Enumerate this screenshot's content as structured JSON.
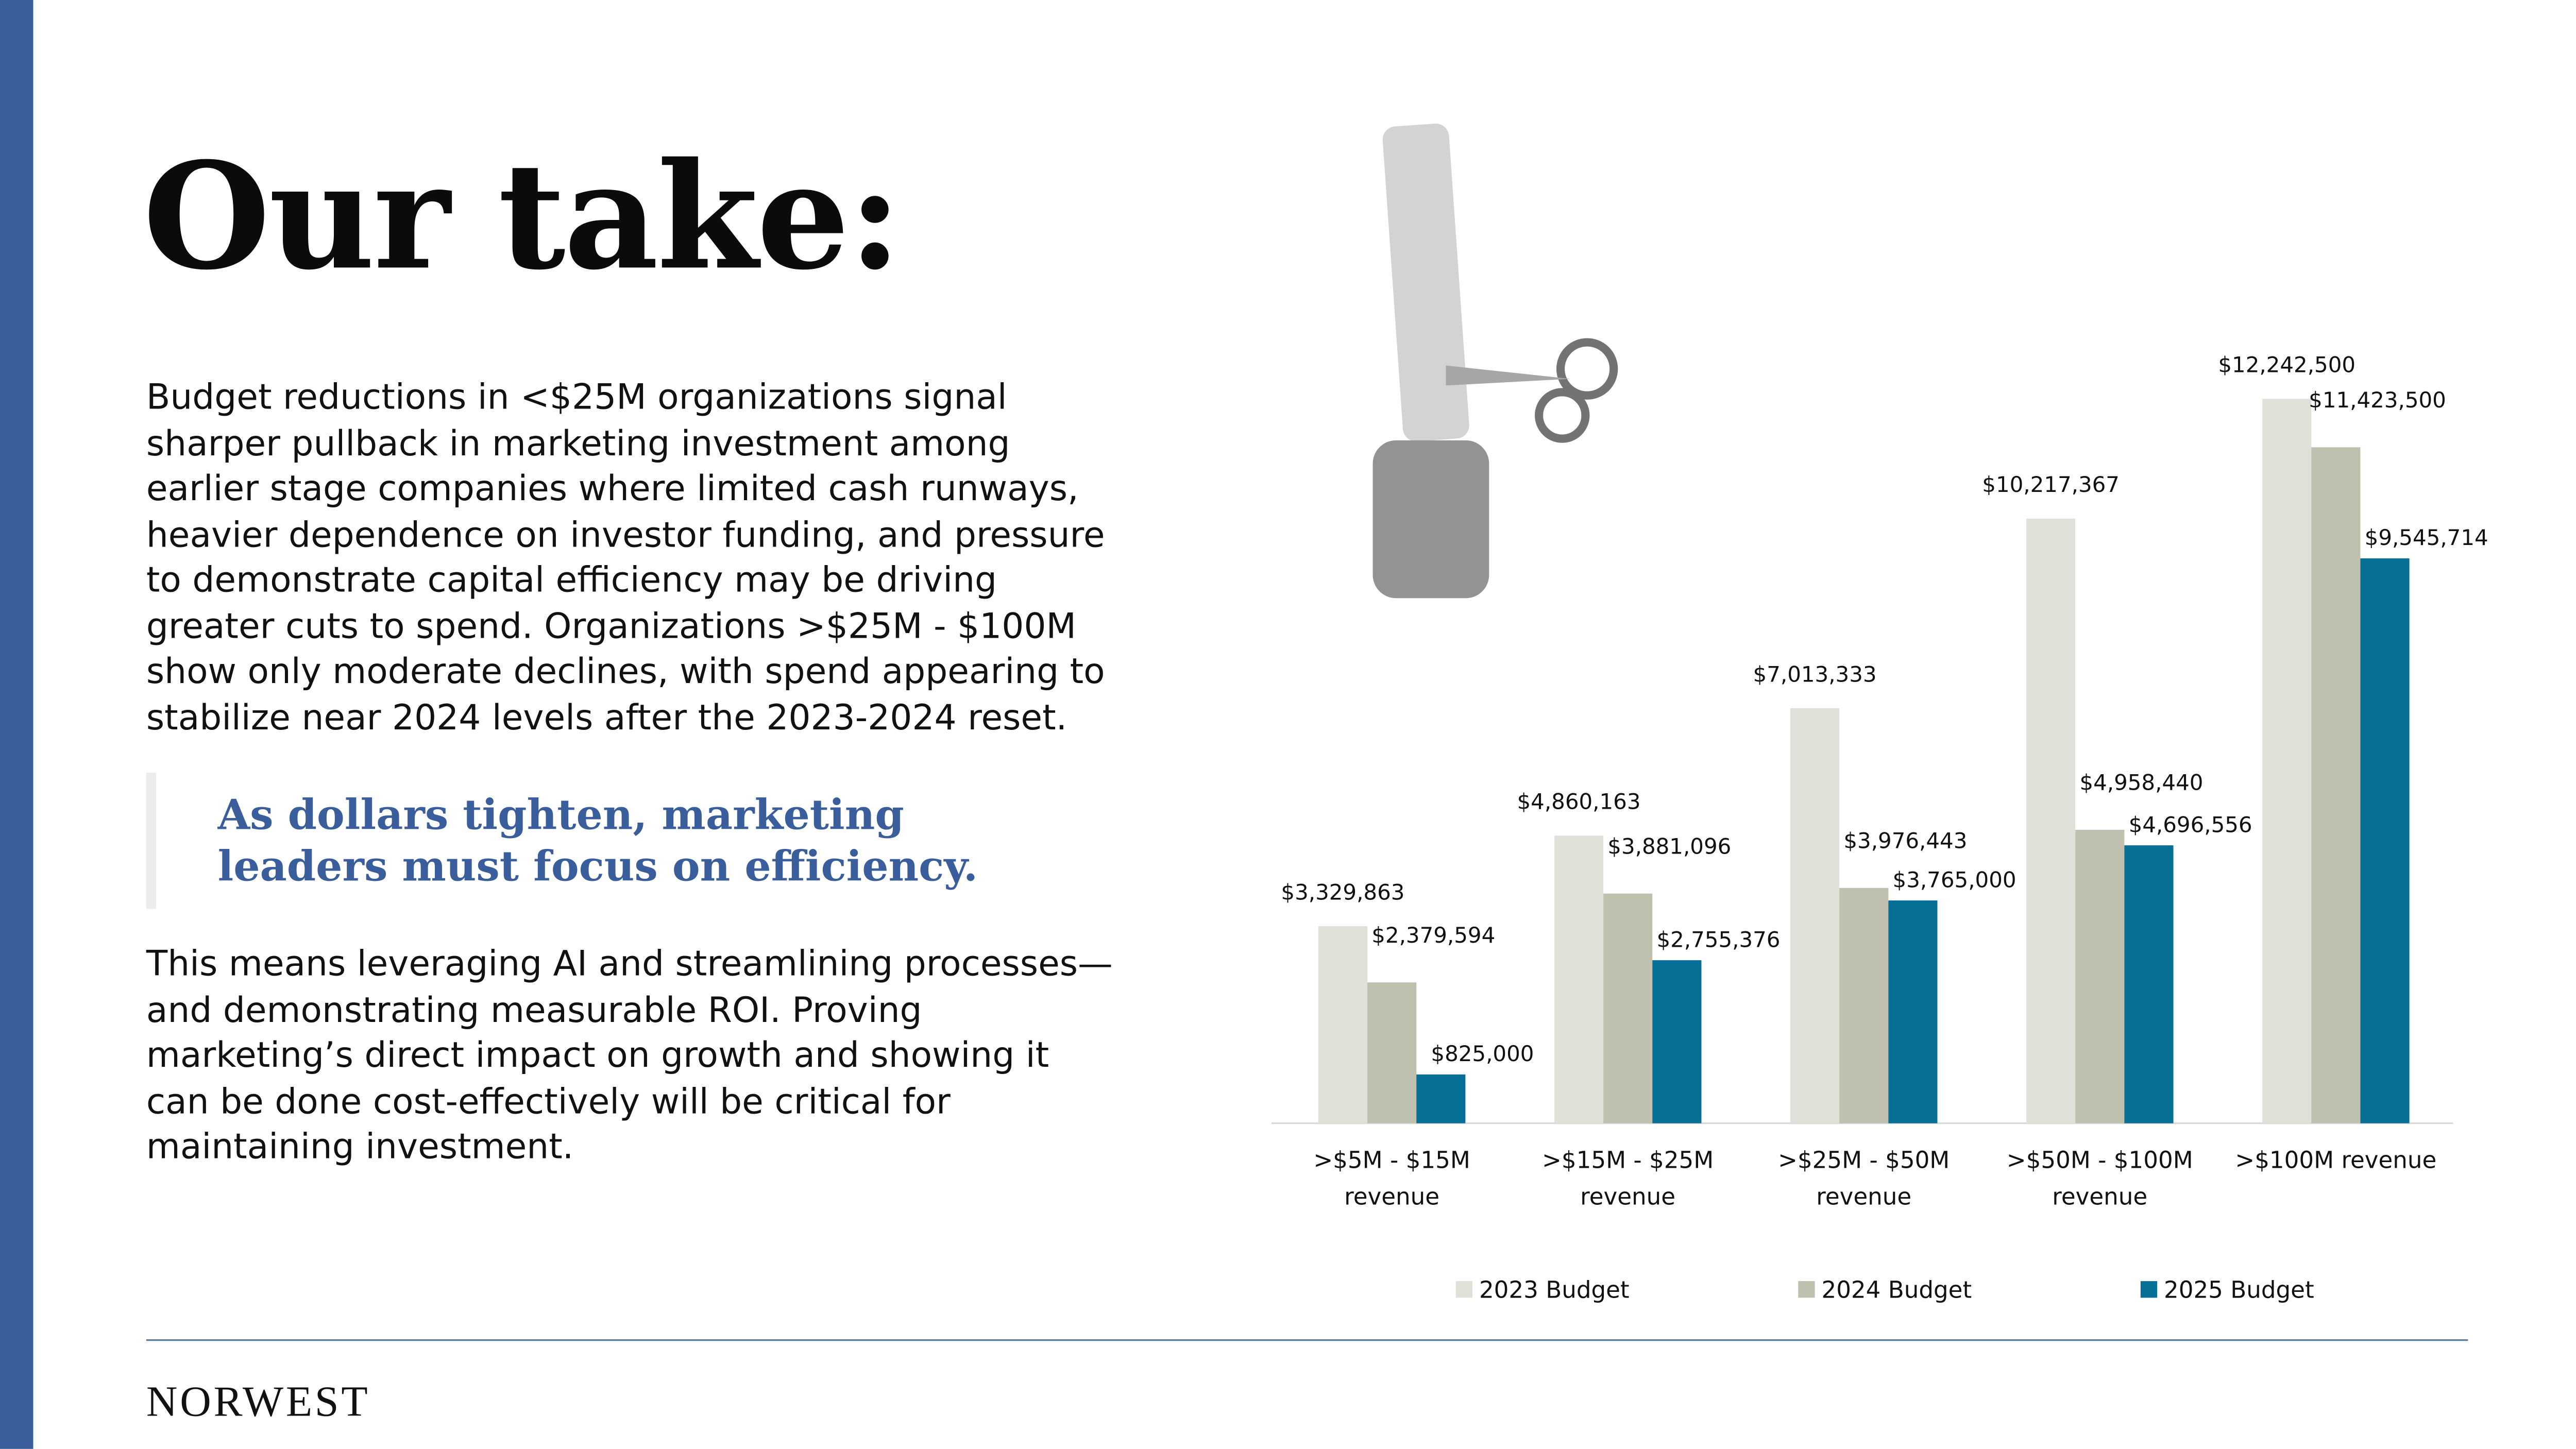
{
  "title": "Our take:",
  "paragraph_1": [
    "Budget reductions in <$25M organizations signal",
    "sharper pullback in marketing investment among",
    "earlier stage companies where limited cash runways,",
    "heavier dependence on investor funding, and pressure",
    "to demonstrate capital efficiency may be driving",
    "greater cuts to spend. Organizations >$25M - $100M",
    "show only moderate declines, with spend appearing to",
    "stabilize near 2024 levels after the 2023-2024 reset."
  ],
  "quote": [
    "As dollars tighten, marketing",
    "leaders must focus on efficiency."
  ],
  "paragraph_2": [
    "This means leveraging AI and streamlining processes—",
    "and demonstrating measurable ROI. Proving",
    "marketing’s direct impact on growth and showing it",
    "can be done cost-effectively will be critical for",
    "maintaining investment."
  ],
  "logo": "NORWEST",
  "chart_data": {
    "type": "bar",
    "categories": [
      ">$5M - $15M revenue",
      ">$15M - $25M revenue",
      ">$25M - $50M revenue",
      ">$50M - $100M revenue",
      ">$100M revenue"
    ],
    "series": [
      {
        "name": "2023 Budget",
        "color": "#e0e0d8",
        "values": [
          3329863,
          4860163,
          7013333,
          10217367,
          12242500
        ],
        "value_labels": [
          "$3,329,863",
          "$4,860,163",
          "$7,013,333",
          "$10,217,367",
          "$12,242,500"
        ]
      },
      {
        "name": "2024 Budget",
        "color": "#bfc0ad",
        "values": [
          2379594,
          3881096,
          3976443,
          4958440,
          11423500
        ],
        "value_labels": [
          "$2,379,594",
          "$3,881,096",
          "$3,976,443",
          "$4,958,440",
          "$11,423,500"
        ]
      },
      {
        "name": "2025 Budget",
        "color": "#066f95",
        "values": [
          825000,
          2755376,
          3765000,
          4696556,
          9545714
        ],
        "value_labels": [
          "$825,000",
          "$2,755,376",
          "$3,765,000",
          "$4,696,556",
          "$9,545,714"
        ]
      }
    ],
    "legend": "bottom"
  }
}
